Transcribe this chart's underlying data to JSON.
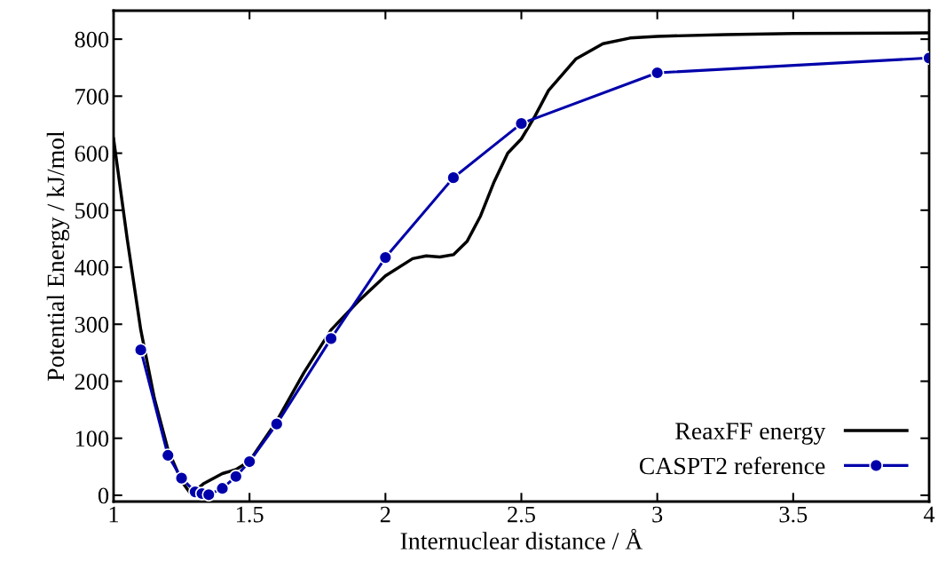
{
  "chart_data": {
    "type": "line",
    "xlabel": "Internuclear distance / Å",
    "ylabel": "Potential Energy / kJ/mol",
    "xlim": [
      1,
      4
    ],
    "ylim": [
      -11,
      850
    ],
    "xticks": [
      1,
      1.5,
      2,
      2.5,
      3,
      3.5,
      4
    ],
    "yticks": [
      0,
      100,
      200,
      300,
      400,
      500,
      600,
      700,
      800
    ],
    "grid": false,
    "legend": "bottom right",
    "series": [
      {
        "name": "ReaxFF energy",
        "color": "#000000",
        "marker": "none",
        "x": [
          1.0,
          1.05,
          1.1,
          1.15,
          1.2,
          1.25,
          1.28,
          1.3,
          1.33,
          1.4,
          1.45,
          1.5,
          1.6,
          1.7,
          1.8,
          1.9,
          2.0,
          2.1,
          2.15,
          2.2,
          2.25,
          2.3,
          2.35,
          2.4,
          2.45,
          2.5,
          2.55,
          2.6,
          2.7,
          2.8,
          2.9,
          3.0,
          3.25,
          3.5,
          4.0
        ],
        "values": [
          625,
          450,
          290,
          170,
          80,
          25,
          5,
          8,
          20,
          38,
          45,
          60,
          130,
          215,
          290,
          340,
          385,
          415,
          420,
          418,
          422,
          445,
          490,
          550,
          600,
          625,
          665,
          710,
          765,
          792,
          802,
          805,
          808,
          810,
          811
        ]
      },
      {
        "name": "CASPT2 reference",
        "color": "#0000aa",
        "marker": "circle",
        "x": [
          1.1,
          1.2,
          1.25,
          1.3,
          1.325,
          1.35,
          1.4,
          1.45,
          1.5,
          1.6,
          1.8,
          2.0,
          2.25,
          2.5,
          3.0,
          4.0
        ],
        "values": [
          255,
          70,
          30,
          6,
          3,
          1,
          12,
          33,
          59,
          125,
          275,
          417,
          557,
          652,
          741,
          767
        ]
      }
    ]
  }
}
